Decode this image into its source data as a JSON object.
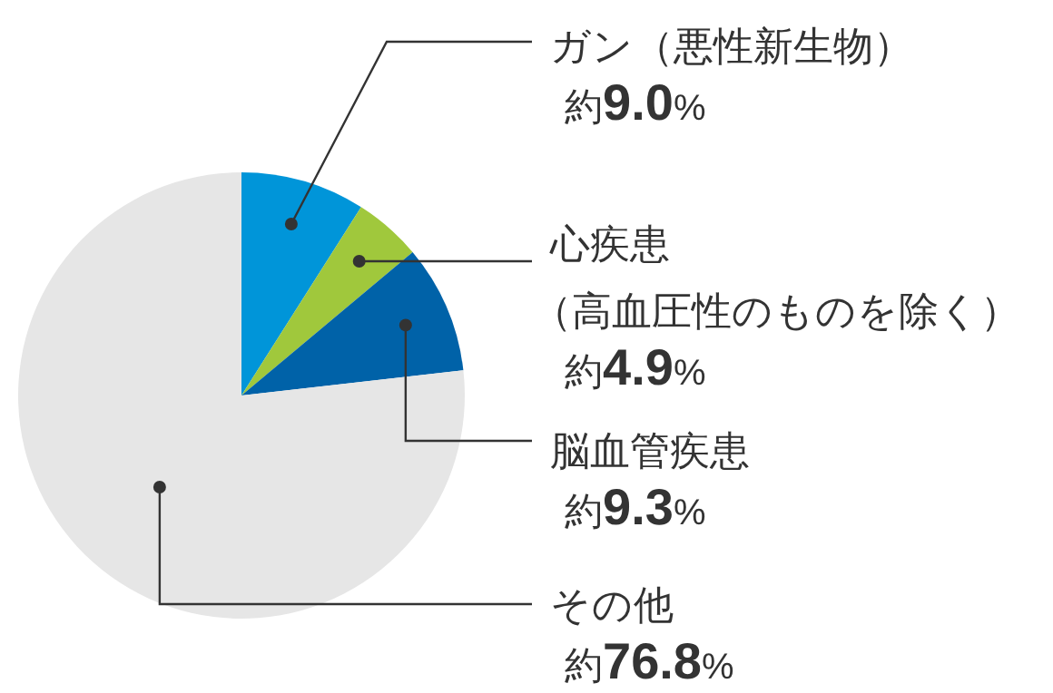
{
  "chart_data": {
    "type": "pie",
    "categories": [
      "ガン（悪性新生物）",
      "心疾患（高血圧性のものを除く）",
      "脳血管疾患",
      "その他"
    ],
    "values": [
      9.0,
      4.9,
      9.3,
      76.8
    ],
    "colors": [
      "#0095d9",
      "#a0c83c",
      "#0062a8",
      "#e6e6e6"
    ],
    "value_labels": [
      "約9.0%",
      "約4.9%",
      "約9.3%",
      "約76.8%"
    ]
  }
}
